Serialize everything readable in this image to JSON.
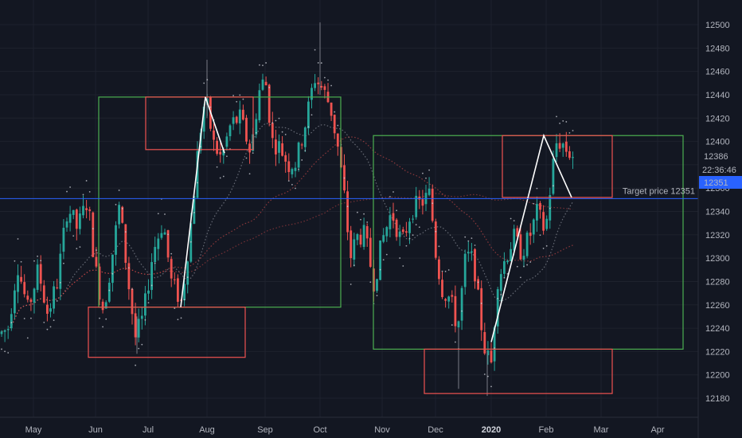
{
  "chart_data": {
    "type": "candlestick",
    "title": "",
    "xlabel": "",
    "ylabel": "",
    "x_ticks": [
      "May",
      "Jun",
      "Jul",
      "Aug",
      "Sep",
      "Oct",
      "Nov",
      "Dec",
      "2020",
      "Feb",
      "Mar",
      "Apr"
    ],
    "y_ticks": [
      12180,
      12200,
      12220,
      12240,
      12260,
      12280,
      12300,
      12320,
      12340,
      12360,
      12380,
      12400,
      12420,
      12440,
      12460,
      12480,
      12500
    ],
    "ylim": [
      12168,
      12516
    ],
    "price_path": [
      [
        0,
        12235
      ],
      [
        10,
        12240
      ],
      [
        22,
        12295
      ],
      [
        35,
        12255
      ],
      [
        48,
        12290
      ],
      [
        60,
        12252
      ],
      [
        72,
        12280
      ],
      [
        85,
        12345
      ],
      [
        97,
        12325
      ],
      [
        110,
        12350
      ],
      [
        120,
        12290
      ],
      [
        130,
        12255
      ],
      [
        140,
        12298
      ],
      [
        150,
        12345
      ],
      [
        162,
        12275
      ],
      [
        170,
        12232
      ],
      [
        180,
        12250
      ],
      [
        192,
        12305
      ],
      [
        205,
        12332
      ],
      [
        215,
        12280
      ],
      [
        228,
        12262
      ],
      [
        240,
        12330
      ],
      [
        250,
        12402
      ],
      [
        258,
        12438
      ],
      [
        268,
        12398
      ],
      [
        278,
        12385
      ],
      [
        290,
        12415
      ],
      [
        302,
        12420
      ],
      [
        315,
        12390
      ],
      [
        325,
        12442
      ],
      [
        333,
        12455
      ],
      [
        342,
        12400
      ],
      [
        352,
        12395
      ],
      [
        362,
        12380
      ],
      [
        372,
        12382
      ],
      [
        385,
        12420
      ],
      [
        395,
        12455
      ],
      [
        405,
        12445
      ],
      [
        415,
        12430
      ],
      [
        425,
        12392
      ],
      [
        433,
        12350
      ],
      [
        440,
        12300
      ],
      [
        448,
        12318
      ],
      [
        458,
        12320
      ],
      [
        470,
        12278
      ],
      [
        480,
        12315
      ],
      [
        492,
        12340
      ],
      [
        505,
        12312
      ],
      [
        517,
        12342
      ],
      [
        530,
        12348
      ],
      [
        540,
        12355
      ],
      [
        548,
        12300
      ],
      [
        556,
        12272
      ],
      [
        565,
        12266
      ],
      [
        575,
        12240
      ],
      [
        585,
        12302
      ],
      [
        595,
        12298
      ],
      [
        603,
        12250
      ],
      [
        610,
        12218
      ],
      [
        617,
        12210
      ],
      [
        625,
        12282
      ],
      [
        635,
        12300
      ],
      [
        645,
        12318
      ],
      [
        655,
        12305
      ],
      [
        665,
        12318
      ],
      [
        675,
        12340
      ],
      [
        685,
        12322
      ],
      [
        692,
        12365
      ],
      [
        698,
        12398
      ],
      [
        705,
        12400
      ],
      [
        712,
        12392
      ],
      [
        720,
        12388
      ]
    ],
    "overlay_paths": [
      {
        "color": "#ffffff",
        "points": [
          [
            227,
            12258
          ],
          [
            258,
            12438
          ],
          [
            282,
            12390
          ]
        ]
      },
      {
        "color": "#ffffff",
        "points": [
          [
            617,
            12228
          ],
          [
            683,
            12405
          ],
          [
            718,
            12352
          ]
        ]
      }
    ],
    "boxes": [
      {
        "color": "#4caf50",
        "x": [
          124,
          428
        ],
        "y": [
          12258,
          12438
        ]
      },
      {
        "color": "#ef5350",
        "x": [
          183,
          318
        ],
        "y": [
          12393,
          12438
        ]
      },
      {
        "color": "#ef5350",
        "x": [
          111,
          308
        ],
        "y": [
          12215,
          12258
        ]
      },
      {
        "color": "#4caf50",
        "x": [
          469,
          858
        ],
        "y": [
          12222,
          12405
        ]
      },
      {
        "color": "#ef5350",
        "x": [
          631,
          769
        ],
        "y": [
          12352,
          12405
        ]
      },
      {
        "color": "#ef5350",
        "x": [
          533,
          769
        ],
        "y": [
          12184,
          12222
        ]
      }
    ],
    "horizontal_line": {
      "value": 12351,
      "label": "Target price 12351",
      "color": "#2962ff"
    },
    "price_labels": {
      "last": "12386",
      "time": "22:36:46",
      "target": "12351"
    },
    "colors": {
      "background": "#131722",
      "up": "#26a69a",
      "down": "#ef5350",
      "grid": "#1e222d",
      "axis_text": "#b2b5be",
      "target_line": "#2962ff",
      "ma_red": "#ef5350"
    }
  }
}
